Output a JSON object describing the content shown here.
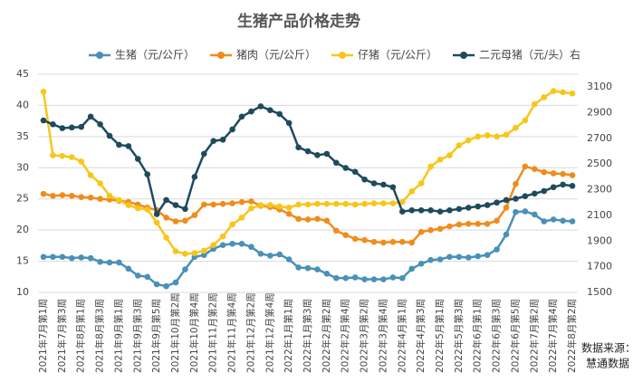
{
  "chart_data": {
    "type": "line",
    "title": "生猪产品价格走势",
    "categories": [
      "2021年7月第1周",
      null,
      "2021年7月第3周",
      null,
      "2021年8月第1周",
      null,
      "2021年8月第3周",
      null,
      "2021年9月第1周",
      null,
      "2021年9月第3周",
      null,
      "2021年9月第5周",
      null,
      "2021年10月第2周",
      null,
      "2021年10月第4周",
      null,
      "2021年11月第2周",
      null,
      "2021年11月第4周",
      null,
      "2021年12月第2周",
      null,
      "2021年12月第4周",
      null,
      "2022年1月第1周",
      null,
      "2022年1月第3周",
      null,
      "2022年2月第2周",
      null,
      "2022年2月第4周",
      null,
      "2022年3月第2周",
      null,
      "2022年3月第4周",
      null,
      "2022年4月第1周",
      null,
      "2022年4月第3周",
      null,
      "2022年5月第1周",
      null,
      "2022年5月第3周",
      null,
      "2022年6月第1周",
      null,
      "2022年6月第3周",
      null,
      "2022年6月第5周",
      null,
      "2022年7月第2周",
      null,
      "2022年7月第4周",
      null,
      "2022年8月第2周"
    ],
    "series": [
      {
        "name": "生猪（元/公斤）",
        "color": "#4a90b8",
        "values": [
          15.7,
          15.7,
          15.7,
          15.5,
          15.6,
          15.5,
          14.9,
          14.8,
          14.8,
          13.8,
          12.7,
          12.5,
          11.3,
          11.0,
          11.6,
          13.7,
          15.7,
          16.0,
          17.0,
          17.6,
          17.8,
          17.8,
          17.3,
          16.2,
          15.9,
          16.1,
          15.3,
          14.0,
          13.9,
          13.7,
          13.0,
          12.3,
          12.3,
          12.4,
          12.1,
          12.1,
          12.1,
          12.4,
          12.3,
          13.8,
          14.6,
          15.2,
          15.3,
          15.7,
          15.7,
          15.6,
          15.8,
          16.0,
          16.9,
          19.3,
          22.9,
          23.0,
          22.5,
          21.4,
          21.7,
          21.5,
          21.4
        ]
      },
      {
        "name": "猪肉（元/公斤）",
        "color": "#f08c1c",
        "values": [
          25.8,
          25.5,
          25.6,
          25.5,
          25.3,
          25.2,
          25.0,
          24.9,
          24.7,
          24.5,
          24.1,
          23.6,
          23.2,
          22.0,
          21.4,
          21.5,
          22.4,
          24.1,
          24.1,
          24.2,
          24.3,
          24.5,
          24.6,
          23.9,
          23.7,
          23.3,
          22.6,
          21.8,
          21.7,
          21.8,
          21.5,
          19.9,
          19.2,
          18.6,
          18.4,
          18.1,
          18.0,
          18.1,
          18.1,
          18.0,
          19.7,
          20.0,
          20.2,
          20.6,
          20.9,
          21.0,
          21.0,
          21.0,
          21.5,
          23.6,
          27.4,
          30.2,
          29.8,
          29.3,
          29.1,
          29.0,
          28.8
        ]
      },
      {
        "name": "仔猪（元/公斤）",
        "color": "#f7c61a",
        "values": [
          42.2,
          32.0,
          31.9,
          31.7,
          31.0,
          28.8,
          27.5,
          25.5,
          24.8,
          24.0,
          23.5,
          23.3,
          21.2,
          18.8,
          16.6,
          16.2,
          16.3,
          16.7,
          17.6,
          19.0,
          20.9,
          22.0,
          23.5,
          24.0,
          24.0,
          23.8,
          23.6,
          24.1,
          24.1,
          24.2,
          24.2,
          24.2,
          24.2,
          24.1,
          24.2,
          24.3,
          24.3,
          24.3,
          24.5,
          26.2,
          27.5,
          30.2,
          31.3,
          32.0,
          33.6,
          34.4,
          35.0,
          35.2,
          35.0,
          35.3,
          36.4,
          37.6,
          40.2,
          41.3,
          42.3,
          42.1,
          41.9
        ]
      },
      {
        "name": "二元母猪（元/头）右",
        "color": "#1f4a5e",
        "axis": "y2",
        "values": [
          2840,
          2810,
          2780,
          2785,
          2790,
          2870,
          2810,
          2720,
          2650,
          2640,
          2540,
          2420,
          2110,
          2220,
          2180,
          2150,
          2400,
          2580,
          2680,
          2690,
          2770,
          2870,
          2910,
          2950,
          2920,
          2890,
          2820,
          2630,
          2600,
          2570,
          2580,
          2510,
          2470,
          2440,
          2380,
          2350,
          2340,
          2320,
          2130,
          2140,
          2140,
          2140,
          2130,
          2140,
          2150,
          2160,
          2170,
          2180,
          2200,
          2220,
          2230,
          2250,
          2270,
          2290,
          2320,
          2340,
          2330
        ]
      }
    ],
    "ylim": [
      10,
      45
    ],
    "yticks": [
      10,
      15,
      20,
      25,
      30,
      35,
      40,
      45
    ],
    "y2lim": [
      1500,
      3200
    ],
    "y2ticks": [
      1500,
      1700,
      1900,
      2100,
      2300,
      2500,
      2700,
      2900,
      3100
    ],
    "grid": true,
    "legend": "top",
    "source": [
      "数据来源：",
      "慧通数据"
    ]
  }
}
